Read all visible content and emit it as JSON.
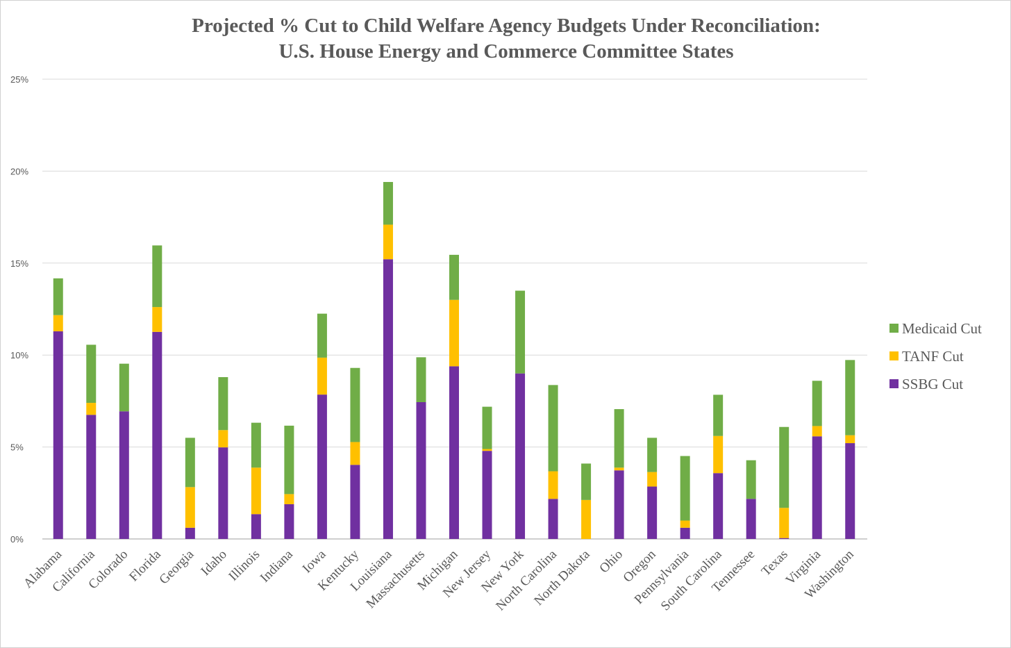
{
  "chart_data": {
    "type": "bar",
    "stacked": true,
    "title": "Projected % Cut to Child Welfare Agency Budgets Under Reconciliation:",
    "subtitle": "U.S. House Energy and Commerce Committee States",
    "xlabel": "",
    "ylabel": "",
    "ylim": [
      0,
      25
    ],
    "yticks": [
      "0%",
      "5%",
      "10%",
      "15%",
      "20%",
      "25%"
    ],
    "ytick_values": [
      0,
      5,
      10,
      15,
      20,
      25
    ],
    "grid": true,
    "legend_position": "right",
    "categories": [
      "Alabama",
      "California",
      "Colorado",
      "Florida",
      "Georgia",
      "Idaho",
      "Illinois",
      "Indiana",
      "Iowa",
      "Kentucky",
      "Louisiana",
      "Massachusetts",
      "Michigan",
      "New Jersey",
      "New York",
      "North Carolina",
      "North Dakota",
      "Ohio",
      "Oregon",
      "Pennsylvania",
      "South Carolina",
      "Tennessee",
      "Texas",
      "Virginia",
      "Washington"
    ],
    "series": [
      {
        "name": "SSBG Cut",
        "color": "#7030A0",
        "values": [
          11.29,
          6.75,
          6.94,
          11.26,
          0.61,
          4.98,
          1.35,
          1.89,
          7.85,
          4.03,
          15.21,
          7.44,
          9.39,
          4.79,
          9.0,
          2.18,
          0,
          3.73,
          2.85,
          0.61,
          3.58,
          2.18,
          0.05,
          5.58,
          5.21
        ]
      },
      {
        "name": "TANF Cut",
        "color": "#FFC000",
        "values": [
          0.88,
          0.65,
          0,
          1.35,
          2.21,
          0.94,
          2.53,
          0.55,
          2.01,
          1.24,
          1.88,
          0,
          3.61,
          0.1,
          0,
          1.5,
          2.12,
          0.15,
          0.79,
          0.39,
          2.02,
          0,
          1.64,
          0.56,
          0.43
        ]
      },
      {
        "name": "Medicaid Cut",
        "color": "#70AD47",
        "values": [
          2.0,
          3.16,
          2.59,
          3.35,
          2.68,
          2.88,
          2.44,
          3.72,
          2.39,
          4.03,
          2.32,
          2.44,
          2.45,
          2.3,
          4.5,
          4.69,
          1.98,
          3.18,
          1.86,
          3.51,
          2.24,
          2.1,
          4.4,
          2.46,
          4.09
        ]
      }
    ]
  }
}
